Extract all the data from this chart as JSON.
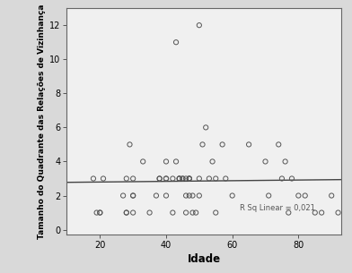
{
  "title": "",
  "xlabel": "Idade",
  "ylabel": "Tamanho do Quadrante das Relações de Vizinhança",
  "xlim": [
    10,
    93
  ],
  "ylim": [
    -0.3,
    13
  ],
  "xticks": [
    20,
    40,
    60,
    80
  ],
  "yticks": [
    0,
    2,
    4,
    6,
    8,
    10,
    12
  ],
  "figure_bg_color": "#d9d9d9",
  "plot_bg_color": "#f0f0f0",
  "scatter_edgecolor": "#555555",
  "scatter_size": 14,
  "line_color": "#444444",
  "r_sq_label": "R Sq Linear = 0,021",
  "data_x": [
    18,
    19,
    20,
    20,
    21,
    27,
    28,
    28,
    28,
    29,
    30,
    30,
    30,
    30,
    33,
    35,
    37,
    38,
    38,
    40,
    40,
    40,
    40,
    42,
    42,
    43,
    43,
    44,
    44,
    44,
    45,
    45,
    46,
    46,
    46,
    47,
    47,
    47,
    47,
    48,
    48,
    49,
    50,
    50,
    50,
    51,
    52,
    53,
    54,
    55,
    55,
    57,
    58,
    60,
    65,
    70,
    71,
    74,
    75,
    76,
    77,
    78,
    80,
    82,
    85,
    87,
    90,
    92
  ],
  "data_y": [
    3,
    1,
    1,
    1,
    3,
    2,
    1,
    1,
    3,
    5,
    2,
    2,
    3,
    1,
    4,
    1,
    2,
    3,
    3,
    3,
    3,
    4,
    2,
    3,
    1,
    11,
    4,
    3,
    3,
    3,
    3,
    3,
    3,
    2,
    1,
    3,
    3,
    3,
    2,
    2,
    1,
    1,
    12,
    3,
    2,
    5,
    6,
    3,
    4,
    3,
    1,
    5,
    3,
    2,
    5,
    4,
    2,
    5,
    3,
    4,
    1,
    3,
    2,
    2,
    1,
    1,
    2,
    1
  ]
}
